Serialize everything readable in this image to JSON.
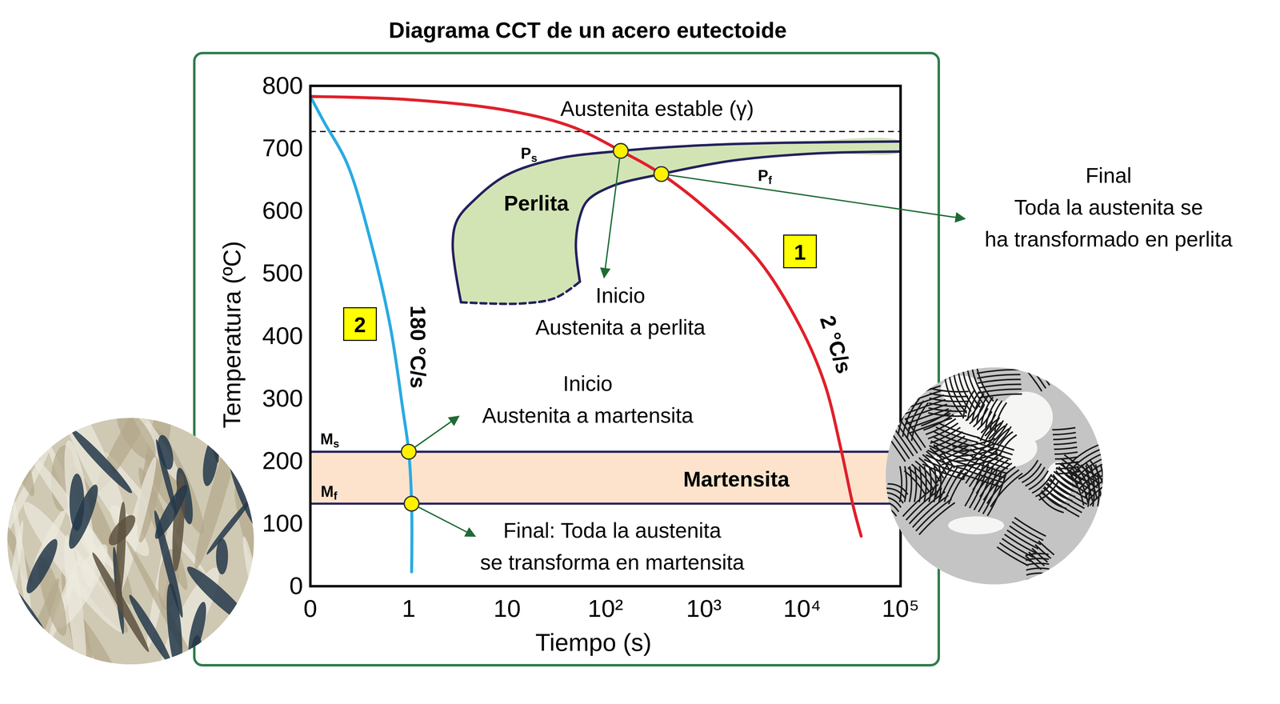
{
  "chart_data": {
    "type": "line",
    "title": "Diagrama CCT de un acero eutectoide",
    "x_label": "Tiempo (s)",
    "y_label": "Temperatura (ºC)",
    "log": "x",
    "grid": false,
    "xlim": [
      0.1,
      100000
    ],
    "xticks": [
      {
        "value": 0.1,
        "label": "0"
      },
      1,
      10,
      {
        "value": 100,
        "label": "10²"
      },
      {
        "value": 1000,
        "label": "10³"
      },
      {
        "value": 10000,
        "label": "10⁴"
      },
      {
        "value": 100000,
        "label": "10⁵"
      }
    ],
    "ylim": [
      0,
      800
    ],
    "yticks": [
      0,
      100,
      200,
      300,
      400,
      500,
      600,
      700,
      800
    ],
    "series": [
      {
        "name": "180 °C/s",
        "color": "#29abe2",
        "box_label": "2",
        "x": [
          0.1,
          0.138,
          0.236,
          0.419,
          0.65,
          0.867,
          1.0,
          1.07,
          1.07
        ],
        "values": [
          783,
          742,
          676,
          546,
          415,
          285,
          215,
          132,
          23
        ]
      },
      {
        "name": "2 °C/s",
        "color": "#e0202a",
        "box_label": "1",
        "x": [
          0.1,
          1,
          9.8,
          45,
          143,
          370,
          1164,
          3664,
          9550,
          16900,
          24800,
          33000,
          39800
        ],
        "values": [
          783,
          778,
          761,
          735,
          696,
          659,
          598,
          520,
          415,
          324,
          219,
          128,
          80
        ]
      }
    ],
    "austenite": {
      "label": "Austenita estable (γ)",
      "value": 727,
      "line_style": "dashed"
    },
    "pearlite": {
      "label": "Perlita",
      "color": "#d3e4b4",
      "edge_color": "#24225e",
      "start": {
        "label": {
          "main": "P",
          "sub": "s"
        },
        "x": [
          3.4,
          2.8,
          3.1,
          4.6,
          9.8,
          31,
          143,
          960,
          6500,
          100000
        ],
        "values": [
          454,
          546,
          585,
          617,
          657,
          683,
          696,
          705,
          709,
          711
        ]
      },
      "finish": {
        "label": {
          "main": "P",
          "sub": "f"
        },
        "x": [
          55,
          50,
          55,
          66,
          118,
          370,
          2070,
          14000,
          100000
        ],
        "values": [
          487,
          546,
          591,
          617,
          640,
          659,
          681,
          692,
          695
        ]
      },
      "unknown_limit": {
        "line_style": "dashed",
        "x": [
          3.4,
          14,
          31,
          55
        ],
        "values": [
          454,
          452,
          461,
          487
        ]
      }
    },
    "martensite": {
      "label": "Martensita",
      "color": "#fde3cc",
      "edge_color": "#24225e",
      "start": {
        "label": {
          "main": "M",
          "sub": "s"
        },
        "value": 215
      },
      "finish": {
        "label": {
          "main": "M",
          "sub": "f"
        },
        "value": 132
      }
    },
    "points": {
      "color": "#fff200",
      "items": [
        {
          "x": 143,
          "y": 696,
          "text": [
            "Inicio",
            "Austenita a perlita"
          ]
        },
        {
          "x": 370,
          "y": 659,
          "text": [
            "Final",
            "Toda la austenita se",
            "ha transformado en perlita"
          ]
        },
        {
          "x": 1.0,
          "y": 215,
          "text": [
            "Inicio",
            "Austenita a martensita"
          ]
        },
        {
          "x": 1.07,
          "y": 132,
          "text": [
            "Final: Toda la austenita",
            "se transforma en martensita"
          ]
        }
      ]
    }
  }
}
